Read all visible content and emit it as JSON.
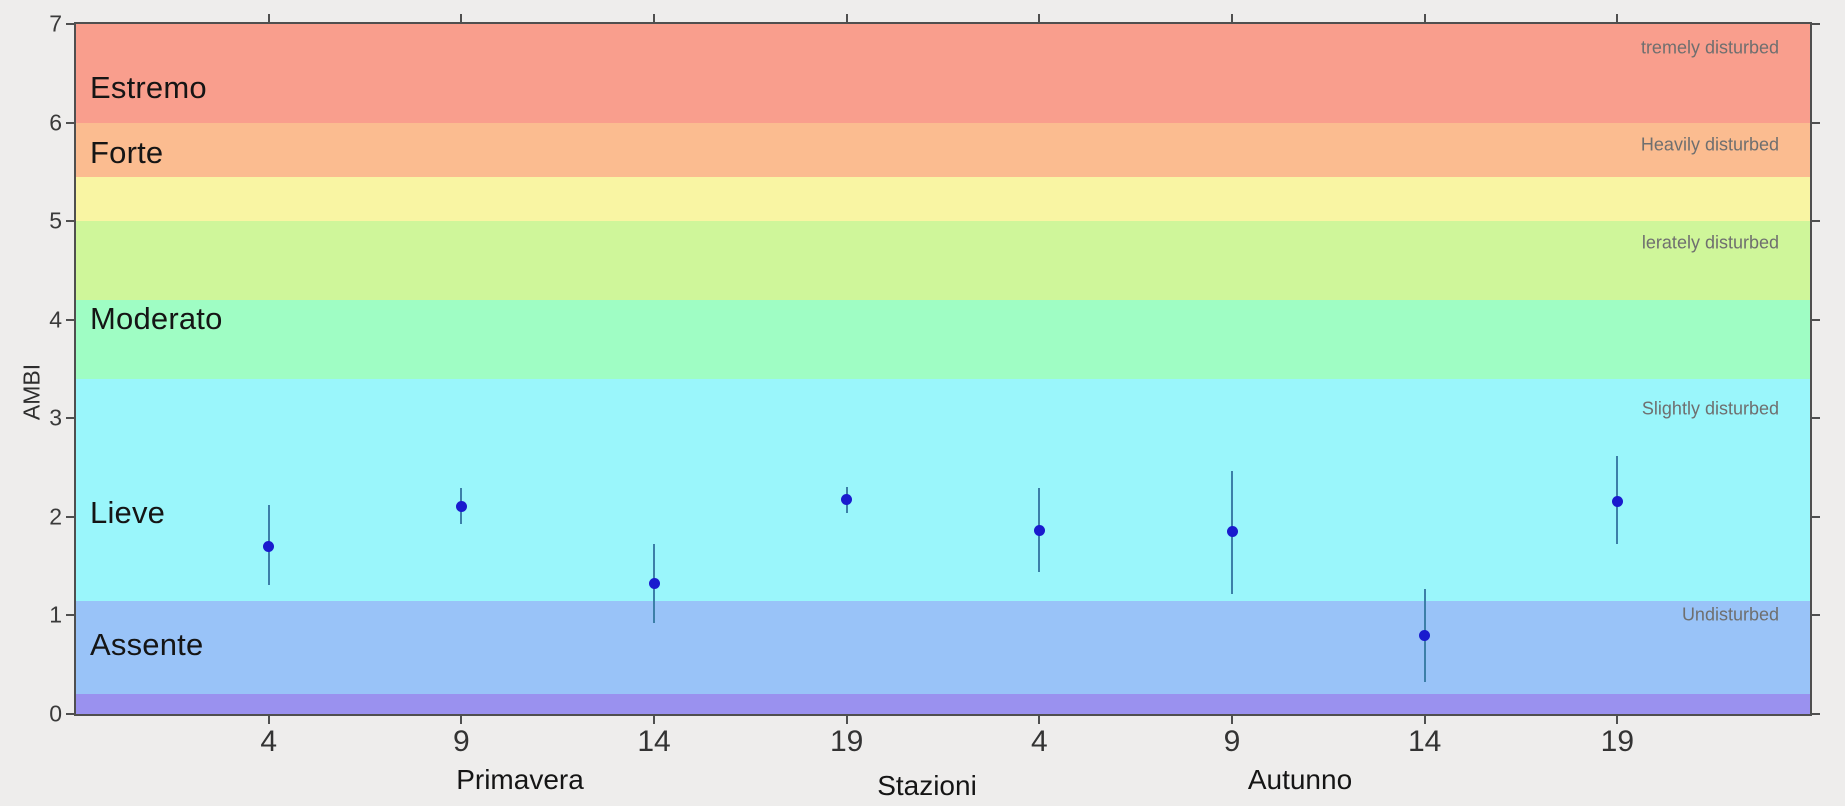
{
  "colors": {
    "figure_background": "#eeedec",
    "axis_border": "#4f4f4f",
    "point": "#1a1bce",
    "error_bar": "#3c7fa8",
    "tick_label": "#3a3a3a",
    "band_label_left": "#151515",
    "band_label_right": "#6f6f6f"
  },
  "chart_data": {
    "type": "scatter",
    "title": "",
    "xlabel": "Stazioni",
    "ylabel": "AMBI",
    "ylim": [
      0,
      7
    ],
    "grid": false,
    "legend": null,
    "y_ticks": [
      "0",
      "1",
      "2",
      "3",
      "4",
      "5",
      "6",
      "7"
    ],
    "x_tick_labels": [
      "4",
      "9",
      "14",
      "19",
      "4",
      "9",
      "14",
      "19"
    ],
    "group_labels": [
      {
        "text": "Primavera"
      },
      {
        "text": "Autunno"
      }
    ],
    "bands": [
      {
        "from": 6.0,
        "to": 7.0,
        "color": "#f99e8d"
      },
      {
        "from": 5.45,
        "to": 6.0,
        "color": "#fbbc90"
      },
      {
        "from": 5.0,
        "to": 5.45,
        "color": "#f9f5a3"
      },
      {
        "from": 4.2,
        "to": 5.0,
        "color": "#cff69a"
      },
      {
        "from": 3.4,
        "to": 4.2,
        "color": "#9ffdc4"
      },
      {
        "from": 1.15,
        "to": 3.4,
        "color": "#9af6fb"
      },
      {
        "from": 0.2,
        "to": 1.15,
        "color": "#99c3f8"
      },
      {
        "from": 0.0,
        "to": 0.2,
        "color": "#9a91ef"
      }
    ],
    "left_labels": [
      {
        "text": "Estremo",
        "at": 6.35
      },
      {
        "text": "Forte",
        "at": 5.69
      },
      {
        "text": "Moderato",
        "at": 4.01
      },
      {
        "text": "Lieve",
        "at": 2.04
      },
      {
        "text": "Assente",
        "at": 0.7
      }
    ],
    "right_labels": [
      {
        "text": "tremely disturbed",
        "at": 6.76
      },
      {
        "text": "Heavily disturbed",
        "at": 5.77
      },
      {
        "text": "lerately disturbed",
        "at": 4.78
      },
      {
        "text": "Slightly disturbed",
        "at": 3.09
      },
      {
        "text": "Undisturbed",
        "at": 1.0
      }
    ],
    "series": [
      {
        "name": "AMBI",
        "points": [
          {
            "season": "Primavera",
            "station": "4",
            "value": 1.7,
            "err_low": 1.31,
            "err_high": 2.12
          },
          {
            "season": "Primavera",
            "station": "9",
            "value": 2.11,
            "err_low": 1.93,
            "err_high": 2.29
          },
          {
            "season": "Primavera",
            "station": "14",
            "value": 1.32,
            "err_low": 0.92,
            "err_high": 1.72
          },
          {
            "season": "Primavera",
            "station": "19",
            "value": 2.18,
            "err_low": 2.04,
            "err_high": 2.3
          },
          {
            "season": "Autunno",
            "station": "4",
            "value": 1.86,
            "err_low": 1.44,
            "err_high": 2.29
          },
          {
            "season": "Autunno",
            "station": "9",
            "value": 1.85,
            "err_low": 1.22,
            "err_high": 2.47
          },
          {
            "season": "Autunno",
            "station": "14",
            "value": 0.8,
            "err_low": 0.32,
            "err_high": 1.27
          },
          {
            "season": "Autunno",
            "station": "19",
            "value": 2.16,
            "err_low": 1.72,
            "err_high": 2.62
          }
        ]
      }
    ]
  }
}
